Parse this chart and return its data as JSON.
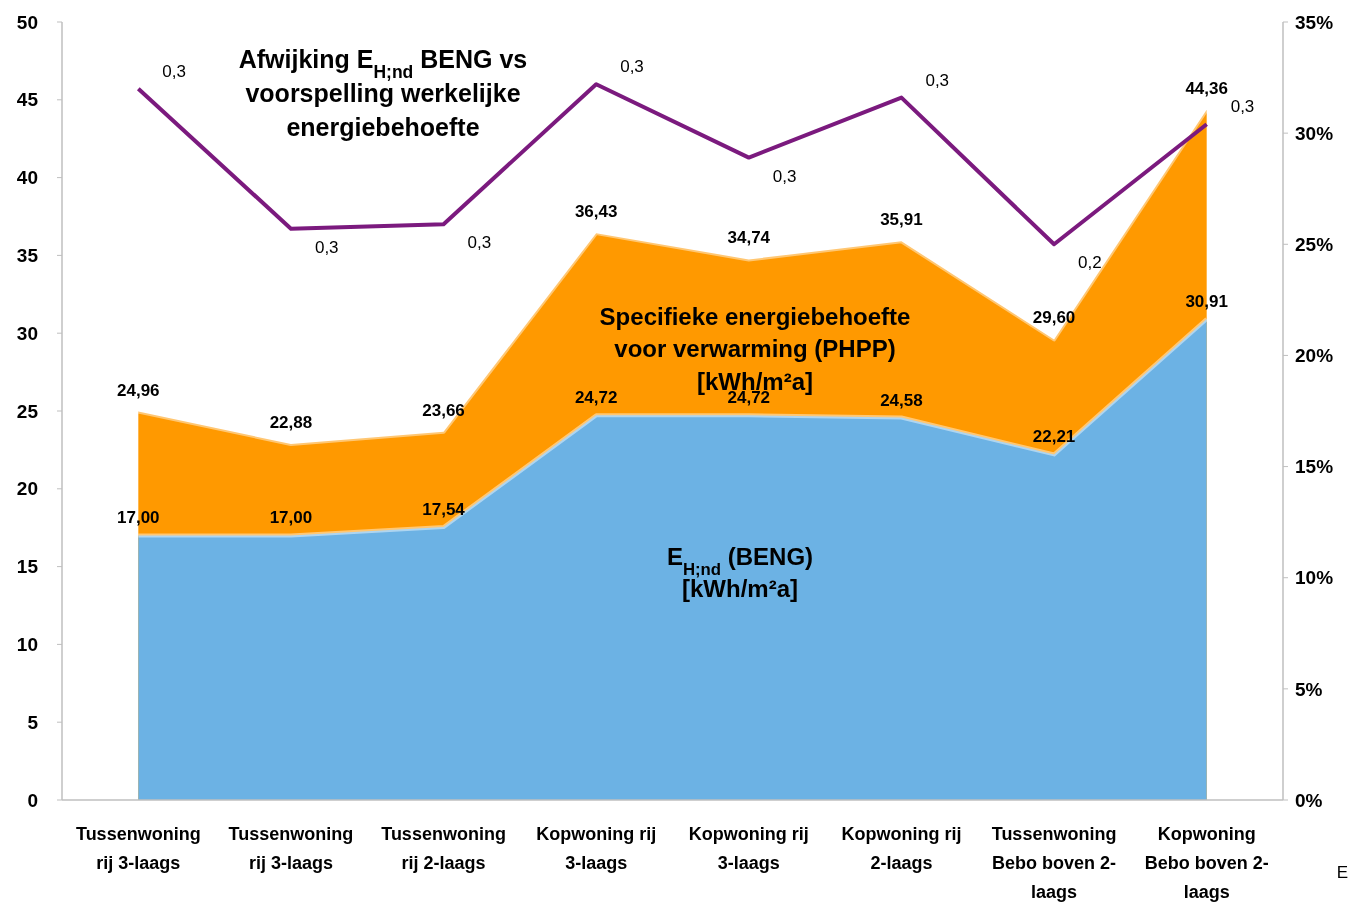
{
  "chart_data": {
    "type": "area",
    "categories": [
      "Tussenwoning rij 3-laags",
      "Tussenwoning rij 3-laags",
      "Tussenwoning rij 2-laags",
      "Kopwoning rij 3-laags",
      "Kopwoning rij 3-laags",
      "Kopwoning rij 2-laags",
      "Tussenwoning Bebo boven 2-laags",
      "Kopwoning Bebo boven 2-laags"
    ],
    "series": [
      {
        "name": "Specifieke energiebehoefte voor verwarming (PHPP) [kWh/m²a]",
        "color": "#ff9900",
        "values": [
          24.96,
          22.88,
          23.66,
          36.43,
          34.74,
          35.91,
          29.6,
          44.36
        ],
        "value_labels": [
          "24,96",
          "22,88",
          "23,66",
          "36,43",
          "34,74",
          "35,91",
          "29,60",
          "44,36"
        ]
      },
      {
        "name": "E$_{H;nd}$ (BENG) [kWh/m²a]",
        "color": "#6cb2e4",
        "values": [
          17.0,
          17.0,
          17.54,
          24.72,
          24.72,
          24.58,
          22.21,
          30.91
        ],
        "value_labels": [
          "17,00",
          "17,00",
          "17,54",
          "24,72",
          "24,72",
          "24,58",
          "22,21",
          "30,91"
        ]
      },
      {
        "name": "Afwijking E$_{H;nd}$ BENG vs voorspelling werkelijke energiebehoefte",
        "type": "line",
        "axis": "y2",
        "color": "#7b1a7e",
        "values": [
          0.32,
          0.257,
          0.259,
          0.322,
          0.289,
          0.316,
          0.25,
          0.304
        ],
        "value_labels": [
          "0,3",
          "0,3",
          "0,3",
          "0,3",
          "0,3",
          "0,3",
          "0,2",
          "0,3"
        ]
      }
    ],
    "ylim": [
      0,
      50
    ],
    "yticks": [
      0,
      5,
      10,
      15,
      20,
      25,
      30,
      35,
      40,
      45,
      50
    ],
    "y2lim": [
      0,
      0.35
    ],
    "y2ticks": [
      {
        "value": 0,
        "label": "0%"
      },
      {
        "value": 0.05,
        "label": "5%"
      },
      {
        "value": 0.1,
        "label": "10%"
      },
      {
        "value": 0.15,
        "label": "15%"
      },
      {
        "value": 0.2,
        "label": "20%"
      },
      {
        "value": 0.25,
        "label": "25%"
      },
      {
        "value": 0.3,
        "label": "30%"
      },
      {
        "value": 0.35,
        "label": "35%"
      }
    ],
    "grid": false,
    "legend": false,
    "marker": "none",
    "line_style": "solid",
    "annotations": [
      "E"
    ]
  }
}
